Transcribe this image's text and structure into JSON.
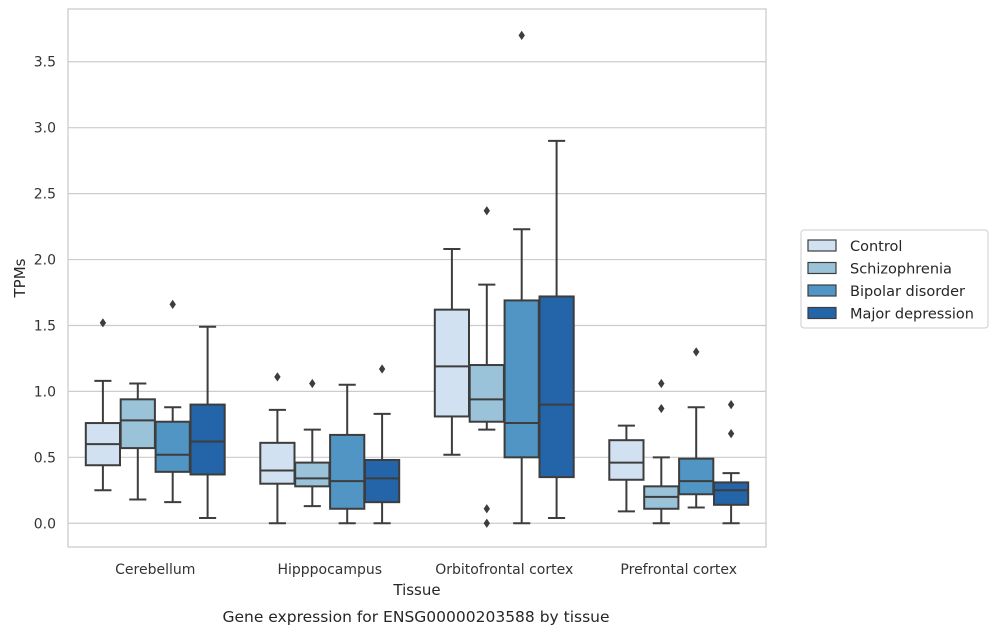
{
  "caption": "Gene expression for ENSG00000203588 by tissue",
  "chart_data": {
    "type": "boxplot",
    "title": "",
    "xlabel": "Tissue",
    "ylabel": "TPMs",
    "ylim": [
      -0.18,
      3.9
    ],
    "yticks": [
      "0.0",
      "0.5",
      "1.0",
      "1.5",
      "2.0",
      "2.5",
      "3.0",
      "3.5"
    ],
    "ytick_values": [
      0,
      0.5,
      1.0,
      1.5,
      2.0,
      2.5,
      3.0,
      3.5
    ],
    "grid": "horizontal",
    "legend_position": "right, outside plot",
    "categories": [
      "Cerebellum",
      "Hipppocampus",
      "Orbitofrontal cortex",
      "Prefrontal cortex"
    ],
    "series": [
      {
        "name": "Control",
        "color": "#d2e1f1",
        "boxes": [
          {
            "whisker_low": 0.25,
            "q1": 0.44,
            "median": 0.6,
            "q3": 0.76,
            "whisker_high": 1.08,
            "outliers": [
              1.52
            ]
          },
          {
            "whisker_low": 0.0,
            "q1": 0.3,
            "median": 0.4,
            "q3": 0.61,
            "whisker_high": 0.86,
            "outliers": [
              1.11
            ]
          },
          {
            "whisker_low": 0.52,
            "q1": 0.81,
            "median": 1.19,
            "q3": 1.62,
            "whisker_high": 2.08,
            "outliers": []
          },
          {
            "whisker_low": 0.09,
            "q1": 0.33,
            "median": 0.46,
            "q3": 0.63,
            "whisker_high": 0.74,
            "outliers": []
          }
        ]
      },
      {
        "name": "Schizophrenia",
        "color": "#9ac3da",
        "boxes": [
          {
            "whisker_low": 0.18,
            "q1": 0.57,
            "median": 0.78,
            "q3": 0.94,
            "whisker_high": 1.06,
            "outliers": []
          },
          {
            "whisker_low": 0.13,
            "q1": 0.28,
            "median": 0.34,
            "q3": 0.46,
            "whisker_high": 0.71,
            "outliers": [
              1.06
            ]
          },
          {
            "whisker_low": 0.71,
            "q1": 0.77,
            "median": 0.94,
            "q3": 1.2,
            "whisker_high": 1.81,
            "outliers": [
              2.37,
              0.11,
              0.0
            ]
          },
          {
            "whisker_low": 0.0,
            "q1": 0.11,
            "median": 0.2,
            "q3": 0.28,
            "whisker_high": 0.5,
            "outliers": [
              1.06,
              0.87
            ]
          }
        ]
      },
      {
        "name": "Bipolar disorder",
        "color": "#5095c4",
        "boxes": [
          {
            "whisker_low": 0.16,
            "q1": 0.39,
            "median": 0.52,
            "q3": 0.77,
            "whisker_high": 0.88,
            "outliers": [
              1.66
            ]
          },
          {
            "whisker_low": 0.0,
            "q1": 0.11,
            "median": 0.32,
            "q3": 0.67,
            "whisker_high": 1.05,
            "outliers": []
          },
          {
            "whisker_low": 0.0,
            "q1": 0.5,
            "median": 0.76,
            "q3": 1.69,
            "whisker_high": 2.23,
            "outliers": [
              3.7
            ]
          },
          {
            "whisker_low": 0.12,
            "q1": 0.22,
            "median": 0.32,
            "q3": 0.49,
            "whisker_high": 0.88,
            "outliers": [
              1.3
            ]
          }
        ]
      },
      {
        "name": "Major depression",
        "color": "#2464a8",
        "boxes": [
          {
            "whisker_low": 0.04,
            "q1": 0.37,
            "median": 0.62,
            "q3": 0.9,
            "whisker_high": 1.49,
            "outliers": []
          },
          {
            "whisker_low": 0.0,
            "q1": 0.16,
            "median": 0.34,
            "q3": 0.48,
            "whisker_high": 0.83,
            "outliers": [
              1.17
            ]
          },
          {
            "whisker_low": 0.04,
            "q1": 0.35,
            "median": 0.9,
            "q3": 1.72,
            "whisker_high": 2.9,
            "outliers": []
          },
          {
            "whisker_low": 0.0,
            "q1": 0.14,
            "median": 0.25,
            "q3": 0.31,
            "whisker_high": 0.38,
            "outliers": [
              0.9,
              0.68
            ]
          }
        ]
      }
    ]
  }
}
